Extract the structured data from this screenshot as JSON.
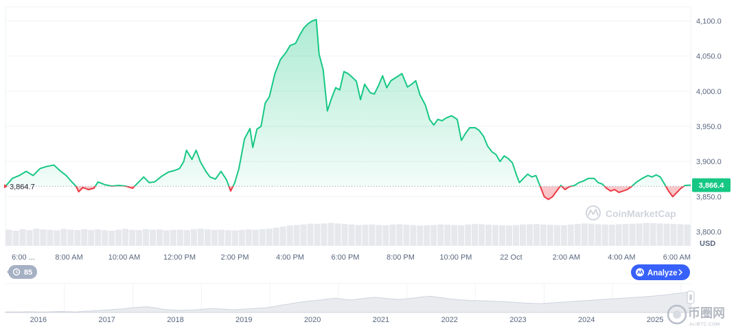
{
  "chart_data": {
    "type": "area",
    "currency": "USD",
    "baseline_value": 3864.7,
    "baseline_label": "3,864.7",
    "current_value": 3866.4,
    "current_label": "3,866.4",
    "ylim": [
      3780,
      4120
    ],
    "y_ticks": [
      {
        "value": 3800,
        "label": "3,800.0"
      },
      {
        "value": 3850,
        "label": "3,850.0"
      },
      {
        "value": 3900,
        "label": "3,900.0"
      },
      {
        "value": 3950,
        "label": "3,950.0"
      },
      {
        "value": 4000,
        "label": "4,000.0"
      },
      {
        "value": 4050,
        "label": "4,050.0"
      },
      {
        "value": 4100,
        "label": "4,100.0"
      }
    ],
    "x_ticks": [
      {
        "x": 0.5,
        "label": "6:00 ..."
      },
      {
        "x": 2.5,
        "label": "8:00 AM"
      },
      {
        "x": 4.5,
        "label": "10:00 AM"
      },
      {
        "x": 6.5,
        "label": "12:00 PM"
      },
      {
        "x": 8.5,
        "label": "2:00 PM"
      },
      {
        "x": 10.5,
        "label": "4:00 PM"
      },
      {
        "x": 12.5,
        "label": "6:00 PM"
      },
      {
        "x": 14.5,
        "label": "8:00 PM"
      },
      {
        "x": 16.5,
        "label": "10:00 PM"
      },
      {
        "x": 18.5,
        "label": "22 Oct"
      },
      {
        "x": 20.5,
        "label": "2:00 AM"
      },
      {
        "x": 22.5,
        "label": "4:00 AM"
      },
      {
        "x": 24.5,
        "label": "6:00 AM"
      }
    ],
    "xlim": [
      0.2,
      25.0
    ],
    "series": [
      {
        "values": [
          [
            0.2,
            3864.7
          ],
          [
            0.45,
            3876
          ],
          [
            0.7,
            3880
          ],
          [
            0.95,
            3886
          ],
          [
            1.2,
            3880
          ],
          [
            1.45,
            3890
          ],
          [
            1.7,
            3893
          ],
          [
            1.95,
            3895
          ],
          [
            2.2,
            3886
          ],
          [
            2.4,
            3880
          ],
          [
            2.6,
            3871
          ],
          [
            2.75,
            3865
          ],
          [
            2.85,
            3857
          ],
          [
            3.0,
            3863
          ],
          [
            3.2,
            3860
          ],
          [
            3.4,
            3862
          ],
          [
            3.55,
            3871
          ],
          [
            3.8,
            3867
          ],
          [
            4.05,
            3865
          ],
          [
            4.3,
            3866
          ],
          [
            4.55,
            3865
          ],
          [
            4.8,
            3862
          ],
          [
            5.0,
            3870
          ],
          [
            5.2,
            3878
          ],
          [
            5.4,
            3870
          ],
          [
            5.6,
            3871
          ],
          [
            5.85,
            3879
          ],
          [
            6.1,
            3885
          ],
          [
            6.3,
            3887
          ],
          [
            6.5,
            3890
          ],
          [
            6.65,
            3900
          ],
          [
            6.75,
            3916
          ],
          [
            6.95,
            3903
          ],
          [
            7.1,
            3916
          ],
          [
            7.25,
            3900
          ],
          [
            7.45,
            3886
          ],
          [
            7.6,
            3878
          ],
          [
            7.8,
            3875
          ],
          [
            8.0,
            3886
          ],
          [
            8.2,
            3874
          ],
          [
            8.35,
            3858
          ],
          [
            8.5,
            3870
          ],
          [
            8.65,
            3890
          ],
          [
            8.85,
            3932
          ],
          [
            9.05,
            3947
          ],
          [
            9.15,
            3920
          ],
          [
            9.3,
            3946
          ],
          [
            9.45,
            3950
          ],
          [
            9.6,
            3983
          ],
          [
            9.75,
            3992
          ],
          [
            9.95,
            4025
          ],
          [
            10.15,
            4045
          ],
          [
            10.35,
            4055
          ],
          [
            10.5,
            4065
          ],
          [
            10.7,
            4068
          ],
          [
            10.85,
            4080
          ],
          [
            11.0,
            4090
          ],
          [
            11.15,
            4096
          ],
          [
            11.3,
            4100
          ],
          [
            11.45,
            4102
          ],
          [
            11.55,
            4053
          ],
          [
            11.7,
            4030
          ],
          [
            11.85,
            3972
          ],
          [
            12.0,
            3990
          ],
          [
            12.15,
            4005
          ],
          [
            12.3,
            4002
          ],
          [
            12.45,
            4028
          ],
          [
            12.6,
            4025
          ],
          [
            12.75,
            4020
          ],
          [
            12.9,
            4014
          ],
          [
            13.05,
            3988
          ],
          [
            13.2,
            4010
          ],
          [
            13.4,
            3998
          ],
          [
            13.55,
            3996
          ],
          [
            13.7,
            4008
          ],
          [
            13.85,
            4022
          ],
          [
            14.0,
            4005
          ],
          [
            14.15,
            4015
          ],
          [
            14.35,
            4020
          ],
          [
            14.55,
            4025
          ],
          [
            14.75,
            4006
          ],
          [
            14.9,
            4010
          ],
          [
            15.05,
            4015
          ],
          [
            15.2,
            3995
          ],
          [
            15.4,
            3980
          ],
          [
            15.55,
            3960
          ],
          [
            15.7,
            3952
          ],
          [
            15.85,
            3960
          ],
          [
            16.0,
            3958
          ],
          [
            16.15,
            3962
          ],
          [
            16.35,
            3965
          ],
          [
            16.55,
            3960
          ],
          [
            16.7,
            3930
          ],
          [
            16.85,
            3940
          ],
          [
            17.0,
            3948
          ],
          [
            17.2,
            3948
          ],
          [
            17.35,
            3944
          ],
          [
            17.5,
            3936
          ],
          [
            17.65,
            3922
          ],
          [
            17.8,
            3914
          ],
          [
            17.95,
            3910
          ],
          [
            18.1,
            3900
          ],
          [
            18.25,
            3908
          ],
          [
            18.4,
            3904
          ],
          [
            18.55,
            3898
          ],
          [
            18.7,
            3880
          ],
          [
            18.8,
            3870
          ],
          [
            18.95,
            3876
          ],
          [
            19.1,
            3882
          ],
          [
            19.25,
            3878
          ],
          [
            19.4,
            3880
          ],
          [
            19.55,
            3865
          ],
          [
            19.7,
            3850
          ],
          [
            19.85,
            3846
          ],
          [
            20.0,
            3850
          ],
          [
            20.15,
            3858
          ],
          [
            20.3,
            3866
          ],
          [
            20.45,
            3860
          ],
          [
            20.6,
            3864
          ],
          [
            20.8,
            3866
          ],
          [
            20.95,
            3870
          ],
          [
            21.1,
            3872
          ],
          [
            21.3,
            3876
          ],
          [
            21.5,
            3876
          ],
          [
            21.65,
            3870
          ],
          [
            21.8,
            3868
          ],
          [
            21.95,
            3862
          ],
          [
            22.1,
            3858
          ],
          [
            22.25,
            3860
          ],
          [
            22.4,
            3856
          ],
          [
            22.55,
            3858
          ],
          [
            22.7,
            3860
          ],
          [
            22.85,
            3864
          ],
          [
            23.05,
            3871
          ],
          [
            23.25,
            3876
          ],
          [
            23.45,
            3880
          ],
          [
            23.6,
            3878
          ],
          [
            23.75,
            3881
          ],
          [
            23.9,
            3878
          ],
          [
            24.05,
            3868
          ],
          [
            24.2,
            3858
          ],
          [
            24.35,
            3850
          ],
          [
            24.5,
            3856
          ],
          [
            24.65,
            3862
          ],
          [
            24.8,
            3866
          ],
          [
            25.0,
            3866.4
          ]
        ]
      }
    ],
    "volume_values": [
      62,
      58,
      64,
      60,
      66,
      63,
      61,
      59,
      65,
      62,
      60,
      64,
      61,
      63,
      60,
      58,
      62,
      65,
      61,
      60,
      64,
      62,
      63,
      59,
      61,
      62,
      60,
      64,
      66,
      63,
      61,
      62,
      60,
      59,
      61,
      63,
      62,
      64,
      66,
      70,
      74,
      78,
      80,
      82,
      85,
      84,
      86,
      88,
      86,
      84,
      82,
      80,
      81,
      82,
      80,
      79,
      82,
      83,
      81,
      80,
      78,
      79,
      80,
      82,
      81,
      80,
      79,
      82,
      84,
      83,
      81,
      80,
      79,
      78,
      80,
      82,
      83,
      84,
      82,
      81,
      80,
      79,
      82,
      84,
      86,
      85,
      83,
      82,
      81,
      83,
      84,
      85,
      86,
      88,
      87,
      86,
      85,
      84,
      83,
      82
    ],
    "overview": {
      "year_labels": [
        "2016",
        "2017",
        "2018",
        "2019",
        "2020",
        "2021",
        "2022",
        "2023",
        "2024",
        "2025"
      ],
      "values": [
        0.02,
        0.02,
        0.02,
        0.03,
        0.02,
        0.02,
        0.03,
        0.04,
        0.03,
        0.02,
        0.05,
        0.06,
        0.08,
        0.1,
        0.12,
        0.14,
        0.18,
        0.2,
        0.22,
        0.18,
        0.12,
        0.1,
        0.08,
        0.09,
        0.1,
        0.12,
        0.15,
        0.14,
        0.12,
        0.1,
        0.12,
        0.14,
        0.16,
        0.18,
        0.22,
        0.28,
        0.32,
        0.38,
        0.42,
        0.45,
        0.48,
        0.52,
        0.55,
        0.5,
        0.48,
        0.52,
        0.56,
        0.58,
        0.55,
        0.52,
        0.5,
        0.53,
        0.56,
        0.6,
        0.62,
        0.58,
        0.54,
        0.5,
        0.48,
        0.46,
        0.45,
        0.44,
        0.43,
        0.42,
        0.4,
        0.38,
        0.36,
        0.35,
        0.34,
        0.36,
        0.38,
        0.4,
        0.42,
        0.44,
        0.46,
        0.48,
        0.5,
        0.52,
        0.54,
        0.56,
        0.58,
        0.6,
        0.62,
        0.65,
        0.68,
        0.72,
        0.75,
        0.8
      ]
    }
  },
  "ui": {
    "currency_label": "USD",
    "badge_count": "85",
    "analyze_label": "Analyze",
    "watermark_text": "CoinMarketCap",
    "brand_text": "币圈网",
    "brand_url": "ALIBTC.COM"
  },
  "colors": {
    "up": "#16c784",
    "down": "#ea3943",
    "analyze_bg": "#3861fb"
  }
}
